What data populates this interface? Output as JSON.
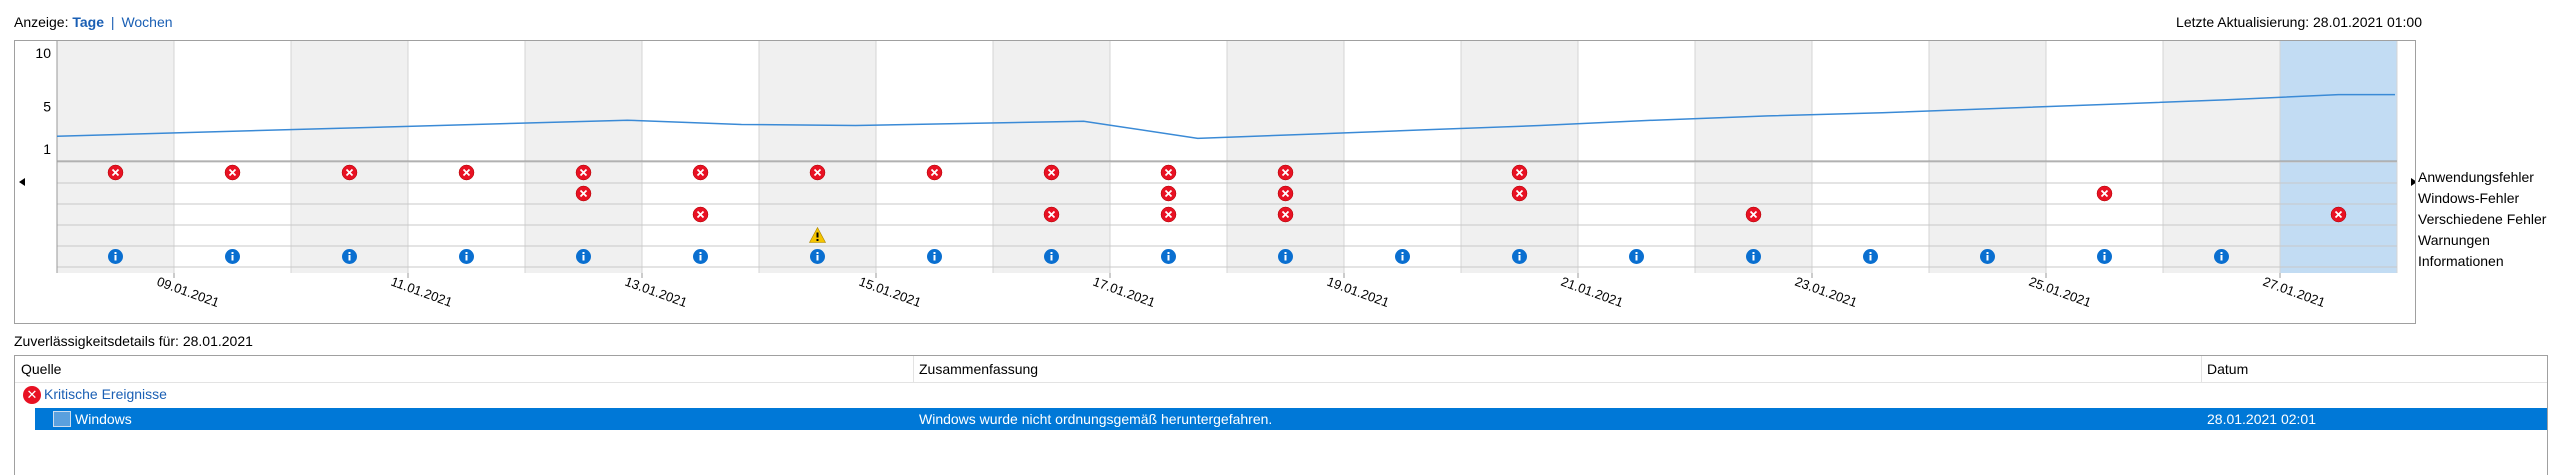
{
  "view": {
    "label": "Anzeige:",
    "days": "Tage",
    "separator": "|",
    "weeks": "Wochen"
  },
  "last_update": "Letzte Aktualisierung: 28.01.2021 01:00",
  "chart_data": {
    "type": "line",
    "y_ticks": [
      "10",
      "5",
      "1"
    ],
    "ylim": [
      1,
      10
    ],
    "date_labels": [
      "09.01.2021",
      "11.01.2021",
      "13.01.2021",
      "15.01.2021",
      "17.01.2021",
      "19.01.2021",
      "21.01.2021",
      "23.01.2021",
      "25.01.2021",
      "27.01.2021"
    ],
    "days": 20,
    "first_day": "08.01.2021",
    "selected_day_index": 19,
    "stability_index": [
      2.2,
      2.5,
      2.8,
      3.1,
      3.4,
      3.7,
      3.3,
      3.2,
      3.4,
      3.6,
      2.0,
      2.4,
      2.8,
      3.2,
      3.7,
      4.1,
      4.4,
      4.8,
      5.2,
      5.6,
      6.1
    ],
    "event_rows": [
      {
        "name": "Anwendungsfehler",
        "kind": "error",
        "days": [
          0,
          1,
          2,
          3,
          4,
          5,
          6,
          7,
          8,
          9,
          10,
          12
        ]
      },
      {
        "name": "Windows-Fehler",
        "kind": "error",
        "days": [
          4,
          9,
          10,
          12,
          17
        ]
      },
      {
        "name": "Verschiedene Fehler",
        "kind": "error",
        "days": [
          5,
          8,
          9,
          10,
          14,
          19
        ]
      },
      {
        "name": "Warnungen",
        "kind": "warning",
        "days": [
          6
        ]
      },
      {
        "name": "Informationen",
        "kind": "info",
        "days": [
          0,
          1,
          2,
          3,
          4,
          5,
          6,
          7,
          8,
          9,
          10,
          11,
          12,
          13,
          14,
          15,
          16,
          17,
          18
        ]
      }
    ]
  },
  "row_labels": [
    "Anwendungsfehler",
    "Windows-Fehler",
    "Verschiedene Fehler",
    "Warnungen",
    "Informationen"
  ],
  "details": {
    "title": "Zuverlässigkeitsdetails für: 28.01.2021",
    "columns": [
      "Quelle",
      "Zusammenfassung",
      "Datum"
    ],
    "group": "Kritische Ereignisse",
    "rows": [
      {
        "source": "Windows",
        "summary": "Windows wurde nicht ordnungsgemäß heruntergefahren.",
        "date": "28.01.2021 02:01"
      }
    ]
  },
  "colors": {
    "accent": "#0078d7",
    "link": "#1a5fb4",
    "error": "#e81123",
    "info": "#0a6fd0",
    "warning": "#f5c400",
    "selected_day": "#c2dcf3",
    "shaded_day": "#f0f0f0",
    "line": "#3a8ad6"
  }
}
